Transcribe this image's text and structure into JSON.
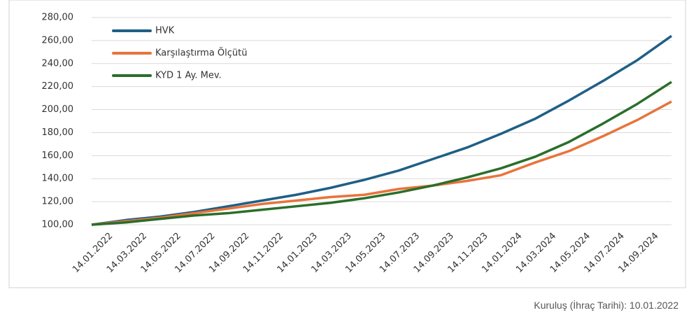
{
  "chart_data": {
    "type": "line",
    "categories": [
      "14.01.2022",
      "14.03.2022",
      "14.05.2022",
      "14.07.2022",
      "14.09.2022",
      "14.11.2022",
      "14.01.2023",
      "14.03.2023",
      "14.05.2023",
      "14.07.2023",
      "14.09.2023",
      "14.11.2023",
      "14.01.2024",
      "14.03.2024",
      "14.05.2024",
      "14.07.2024",
      "14.09.2024",
      null
    ],
    "series": [
      {
        "name": "HVK",
        "color": "#1f5f86",
        "values": [
          100,
          104,
          107,
          111,
          116,
          121,
          126,
          132,
          139,
          147,
          157,
          167,
          179,
          192,
          208,
          225,
          243,
          264
        ]
      },
      {
        "name": "Karşılaştırma Ölçütü",
        "color": "#e8743b",
        "values": [
          100,
          103,
          106,
          110,
          114,
          118,
          121,
          124,
          126,
          131,
          134,
          138,
          143,
          154,
          164,
          177,
          191,
          207
        ]
      },
      {
        "name": "KYD 1 Ay. Mev.",
        "color": "#2a6e2a",
        "values": [
          100,
          102,
          105,
          108,
          110,
          113,
          116,
          119,
          123,
          128,
          134,
          141,
          149,
          159,
          172,
          188,
          205,
          224
        ]
      }
    ],
    "ylim": [
      100,
      280
    ],
    "yticks": [
      {
        "value": 100,
        "label": "100,00"
      },
      {
        "value": 120,
        "label": "120,00"
      },
      {
        "value": 140,
        "label": "140,00"
      },
      {
        "value": 160,
        "label": "160,00"
      },
      {
        "value": 180,
        "label": "180,00"
      },
      {
        "value": 200,
        "label": "200,00"
      },
      {
        "value": 220,
        "label": "220,00"
      },
      {
        "value": 240,
        "label": "240,00"
      },
      {
        "value": 260,
        "label": "260,00"
      },
      {
        "value": 280,
        "label": "280,00"
      }
    ],
    "grid": true,
    "legend": "top-left"
  },
  "footer": "Kuruluş (İhraç Tarihi): 10.01.2022"
}
